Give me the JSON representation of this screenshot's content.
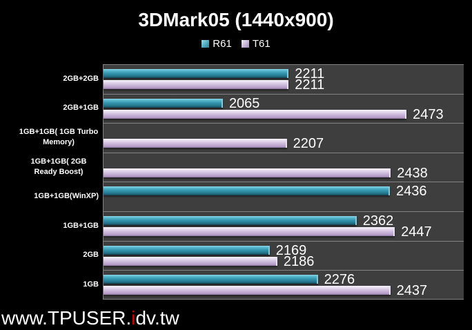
{
  "chart_data": {
    "type": "bar",
    "orientation": "horizontal",
    "title": "3DMark05 (1440x900)",
    "categories": [
      "2GB+2GB",
      "2GB+1GB",
      "1GB+1GB( 1GB Turbo Memory)",
      "1GB+1GB( 2GB Ready Boost)",
      "1GB+1GB(WinXP)",
      "1GB+1GB",
      "2GB",
      "1GB"
    ],
    "series": [
      {
        "name": "R61",
        "color": "#3795AC",
        "values": [
          2211,
          2065,
          null,
          null,
          2436,
          2362,
          2169,
          2276
        ]
      },
      {
        "name": "T61",
        "color": "#C9B6D9",
        "values": [
          2211,
          2473,
          2207,
          2438,
          null,
          2447,
          2186,
          2437
        ]
      }
    ],
    "xlim": [
      1800,
      2600
    ],
    "grid": "category-separators-only",
    "legend_position": "top-center",
    "value_labels": "outside-end"
  },
  "watermark": {
    "prefix": "www.TPUSER.",
    "accent": "i",
    "suffix": "dv.tw"
  },
  "colors": {
    "background": "#000000",
    "plot_background": "#3E3E3E",
    "gridline": "#848484",
    "text": "#FFFFFF",
    "r61_bar": "#3795AC",
    "t61_bar": "#C9B6D9",
    "watermark_accent": "#DD0000"
  }
}
